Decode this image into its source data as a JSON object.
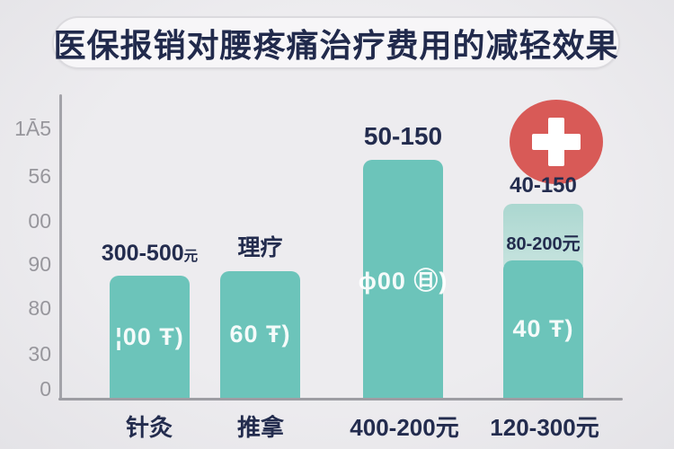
{
  "title": "医保报销对腰疼痛治疗费用的减轻效果",
  "colors": {
    "background": "#e9e8ea",
    "bar_teal": "#6cc4ba",
    "bar_light_segment": "#b8dbd5",
    "badge_red": "#d85a57",
    "text_navy": "#232c4e",
    "tick_gray": "#97969c",
    "axis_gray": "#9d9da3"
  },
  "chart_data": {
    "type": "bar",
    "title": "医保报销对腰疼痛治疗费用的减轻效果",
    "note": "AI-generated infographic; several axis and bar labels are garbled glyphs, transcribed as rendered",
    "grid": false,
    "legend": false,
    "categories": [
      "针灸",
      "推拿",
      "400-200元",
      "120-300元"
    ],
    "y_tick_labels": [
      "1Ā5",
      "56",
      "00",
      "90",
      "80",
      "30",
      "0"
    ],
    "bars": [
      {
        "category": "针灸",
        "top_label": "300-500",
        "top_label_unit": "元",
        "inner_label": "¦00 Ŧ)",
        "height_fraction": 0.402
      },
      {
        "category": "推拿",
        "top_label": "理疗",
        "inner_label": "60 Ŧ)",
        "height_fraction": 0.417
      },
      {
        "category": "400-200元",
        "top_label": "50-150",
        "inner_label": "ϕ00 ㊐)",
        "height_fraction": 0.784
      },
      {
        "category": "120-300元",
        "top_label": "40-150",
        "inner_label": "40 Ŧ)",
        "height_fraction": 0.453,
        "light_segment": {
          "label": "80-200元",
          "height_fraction": 0.185
        }
      }
    ],
    "badge": {
      "name": "medical-cross-badge",
      "color": "#d85a57",
      "position": "above-fourth-bar"
    }
  }
}
